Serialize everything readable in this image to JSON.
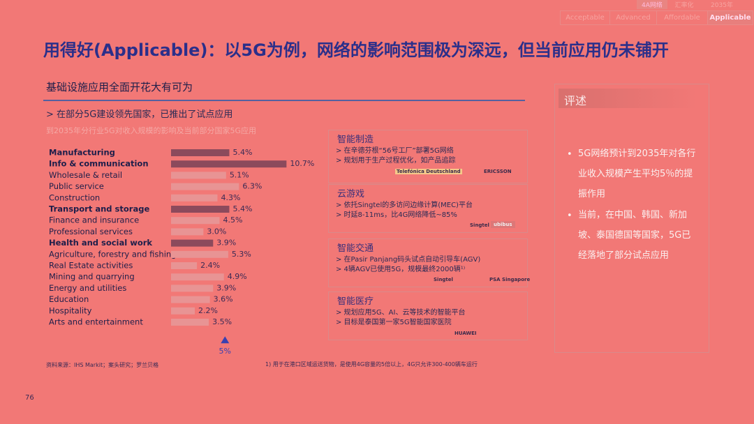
{
  "nav": {
    "tabs": [
      "4A网络",
      "汇率化",
      "2035年"
    ],
    "subtabs": [
      "Acceptable",
      "Advanced",
      "Affordable",
      "Applicable"
    ]
  },
  "title": "用得好(Applicable)：以5G为例，网络的影响范围极为深远，但当前应用仍未铺开",
  "section": {
    "heading": "基础设施应用全面开花大有可为",
    "subheading": "> 在部分5G建设领先国家，已推出了试点应用"
  },
  "chart_data": {
    "type": "bar",
    "orientation": "horizontal",
    "title": "到2035年分行业5G对收入规模的影响及当前部分国家5G应用",
    "categories": [
      "Manufacturing",
      "Info & communication",
      "Wholesale & retail",
      "Public service",
      "Construction",
      "Transport and storage",
      "Finance and insurance",
      "Professional services",
      "Health and social work",
      "Agriculture, forestry and fishing",
      "Real Estate activities",
      "Mining and quarrying",
      "Energy and utilities",
      "Education",
      "Hospitality",
      "Arts and entertainment"
    ],
    "values": [
      5.4,
      10.7,
      5.1,
      6.3,
      4.3,
      5.4,
      4.5,
      3.0,
      3.9,
      5.3,
      2.4,
      4.9,
      3.9,
      3.6,
      2.2,
      3.5
    ],
    "value_labels": [
      "5.4%",
      "10.7%",
      "5.1%",
      "6.3%",
      "4.3%",
      "5.4%",
      "4.5%",
      "3.0%",
      "3.9%",
      "5.3%",
      "2.4%",
      "4.9%",
      "3.9%",
      "3.6%",
      "2.2%",
      "3.5%"
    ],
    "colors": [
      "#8c4a5c",
      "#8c4a5c",
      "#e89494",
      "#e89494",
      "#e89494",
      "#8c4a5c",
      "#e89494",
      "#e89494",
      "#8c4a5c",
      "#e89494",
      "#e89494",
      "#e89494",
      "#e89494",
      "#e89494",
      "#e89494",
      "#e89494"
    ],
    "xlim": [
      0,
      11
    ],
    "reference": {
      "value": 5,
      "label": "5%"
    }
  },
  "cards": [
    {
      "title": "智能制造",
      "bullets": [
        "> 在辛德芬根“56号工厂”部署5G网络",
        "> 规划用于生产过程优化，如产品追踪"
      ],
      "logos": [
        "Telefónica Deutschland",
        "ERICSSON"
      ]
    },
    {
      "title": "云游戏",
      "bullets": [
        "> 依托Singtel的多访问边缘计算(MEC)平台",
        "> 时延8-11ms，比4G网络降低~85%"
      ],
      "logos": [
        "Singtel",
        "ubibus"
      ]
    },
    {
      "title": "智能交通",
      "bullets": [
        "> 在Pasir Panjang码头试点自动引导车(AGV)",
        "> 4辆AGV已使用5G，规模最终2000辆¹⁾"
      ],
      "logos": [
        "Singtel",
        "PSA Singapore"
      ]
    },
    {
      "title": "智能医疗",
      "bullets": [
        "> 规划应用5G、AI、云等技术的智能平台",
        "> 目标是泰国第一家5G智能国家医院"
      ],
      "logos": [
        "HUAWEI"
      ]
    }
  ],
  "comment": {
    "title": "评述",
    "bullets": [
      "5G网络预计到2035年对各行业收入规模产生平均5％的提振作用",
      "当前，在中国、韩国、新加坡、泰国德国等国家，5G已经落地了部分试点应用"
    ]
  },
  "footnotes": {
    "source": "资料来源：IHS Markit；案头研究；罗兰贝格",
    "note": "1) 用于在港口区域运送货物，是使用4G容量的5倍以上，4G只允许300-400辆车运行"
  },
  "page_number": "76"
}
